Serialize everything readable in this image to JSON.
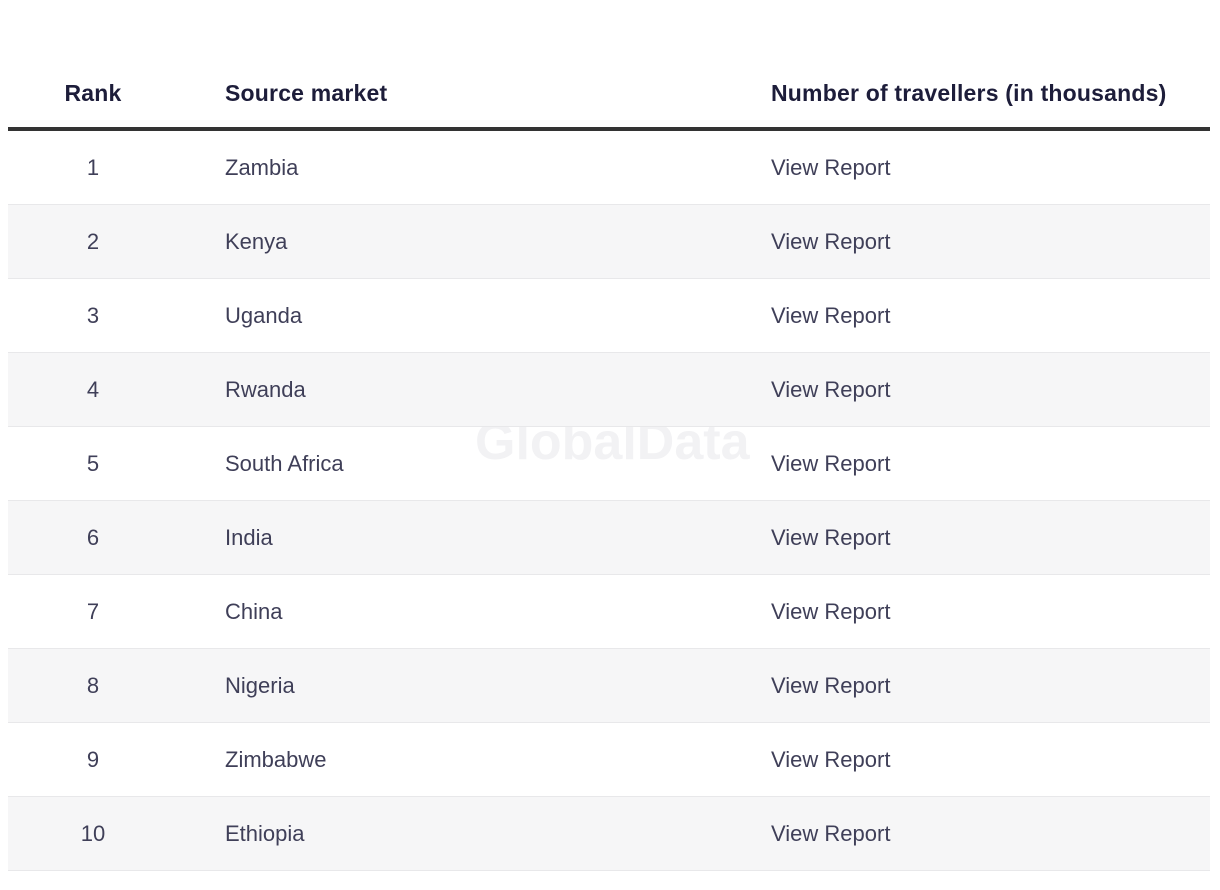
{
  "watermark": {
    "text": "GlobalData"
  },
  "table": {
    "headers": {
      "rank": "Rank",
      "market": "Source market",
      "value": "Number of travellers (in thousands)"
    },
    "rows": [
      {
        "rank": "1",
        "market": "Zambia",
        "value": "View Report"
      },
      {
        "rank": "2",
        "market": "Kenya",
        "value": "View Report"
      },
      {
        "rank": "3",
        "market": "Uganda",
        "value": "View Report"
      },
      {
        "rank": "4",
        "market": "Rwanda",
        "value": "View Report"
      },
      {
        "rank": "5",
        "market": "South Africa",
        "value": "View Report"
      },
      {
        "rank": "6",
        "market": "India",
        "value": "View Report"
      },
      {
        "rank": "7",
        "market": "China",
        "value": "View Report"
      },
      {
        "rank": "8",
        "market": "Nigeria",
        "value": "View Report"
      },
      {
        "rank": "9",
        "market": "Zimbabwe",
        "value": "View Report"
      },
      {
        "rank": "10",
        "market": "Ethiopia",
        "value": "View Report"
      }
    ]
  },
  "colors": {
    "header_text": "#1d1d3a",
    "body_text": "#3f3f58",
    "header_divider": "#333333",
    "row_border": "#e8e8ea",
    "stripe_background": "#f6f6f7",
    "watermark": "#f2f2f4"
  }
}
